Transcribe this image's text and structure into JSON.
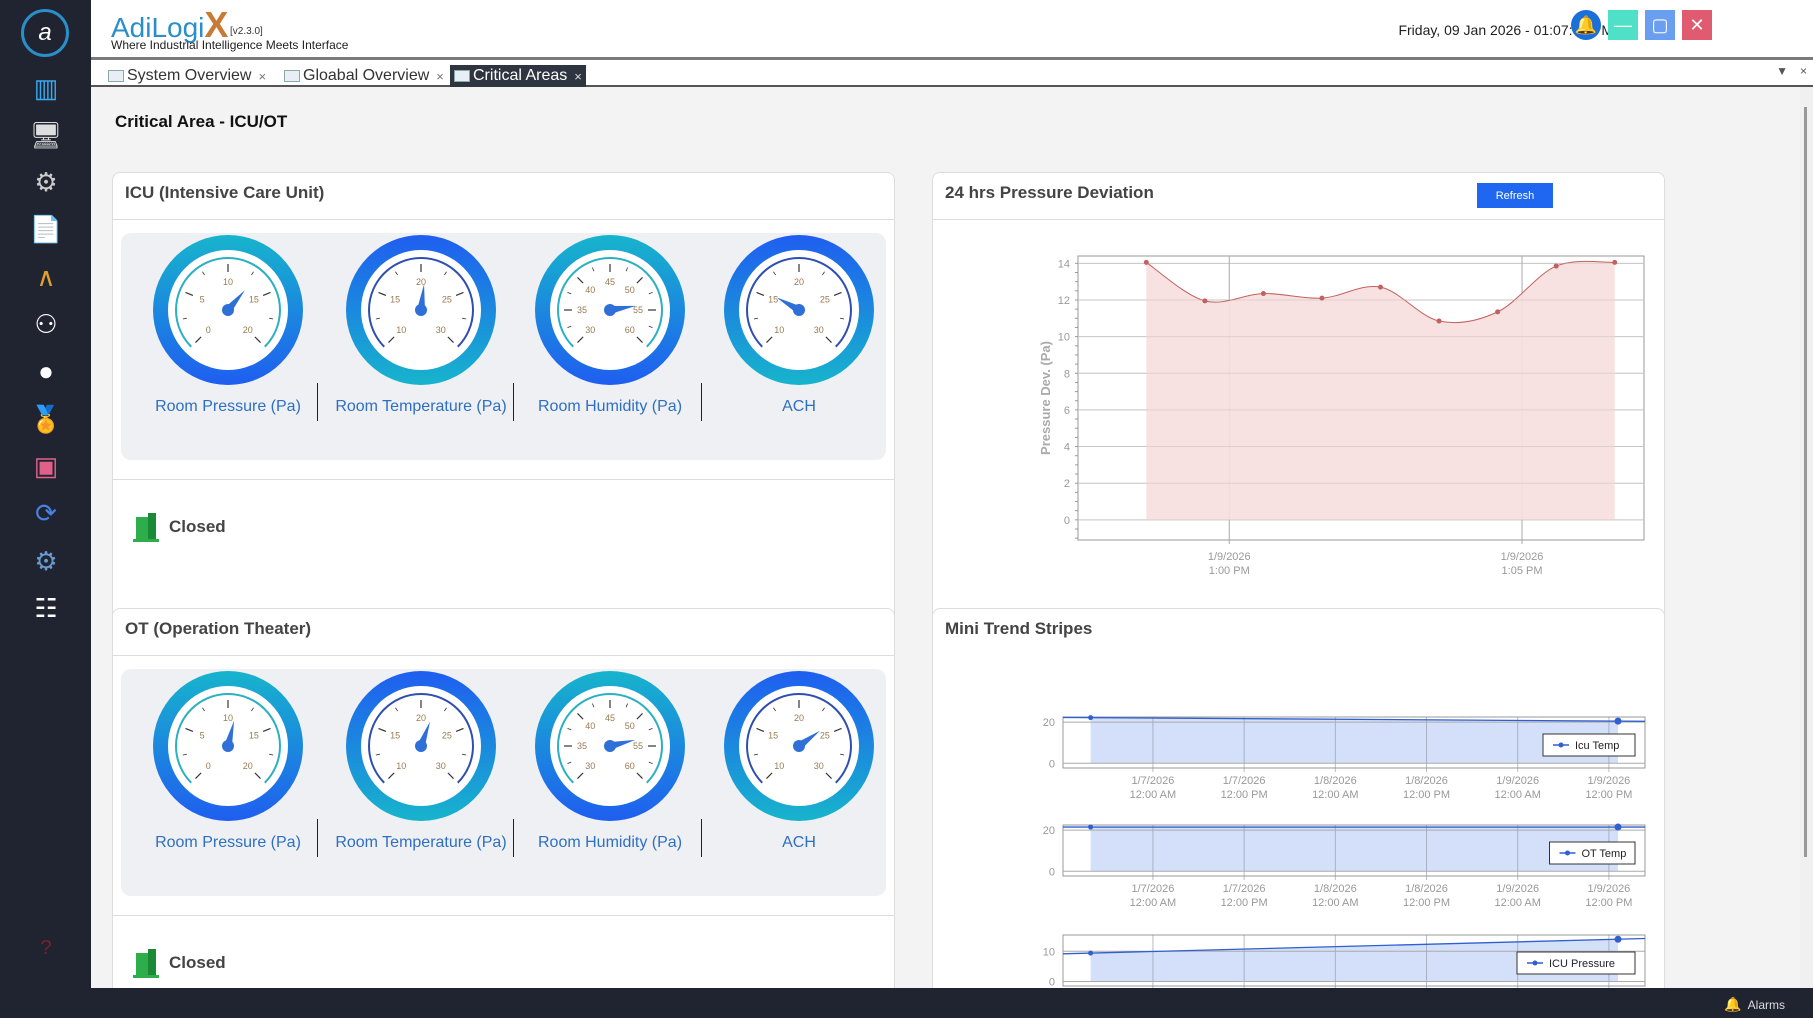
{
  "app": {
    "brand": "AdiLogi",
    "brand_x": "X",
    "version": "[v2.3.0]",
    "tagline": "Where Industrial Intelligence Meets Interface",
    "datetime": "Friday, 09 Jan 2026 - 01:07:04 PM"
  },
  "sidebar": {
    "items": [
      {
        "icon": "building-icon",
        "glyph": "▥",
        "color": "#3aa8f0"
      },
      {
        "icon": "dashboard-monitor-icon",
        "glyph": "🖥",
        "color": "#ddd"
      },
      {
        "icon": "window-settings-icon",
        "glyph": "⚙",
        "color": "#ccc"
      },
      {
        "icon": "report-icon",
        "glyph": "📄",
        "color": "#ccc"
      },
      {
        "icon": "bell-curve-chart-icon",
        "glyph": "∧",
        "color": "#e0a030"
      },
      {
        "icon": "hierarchy-icon",
        "glyph": "⚇",
        "color": "#fff"
      },
      {
        "icon": "user-profile-icon",
        "glyph": "●",
        "color": "#fff"
      },
      {
        "icon": "certificate-award-icon",
        "glyph": "🏅",
        "color": "#f0c020"
      },
      {
        "icon": "user-settings-display-icon",
        "glyph": "▣",
        "color": "#e0608a"
      },
      {
        "icon": "sync-check-icon",
        "glyph": "⟳",
        "color": "#4a80e0"
      },
      {
        "icon": "gear-icon",
        "glyph": "⚙",
        "color": "#6a9ad0"
      },
      {
        "icon": "checklist-clock-icon",
        "glyph": "☷",
        "color": "#fff"
      }
    ],
    "help_icon": "?",
    "logout_icon": "⇥"
  },
  "header_buttons": [
    {
      "name": "notification-bell-button",
      "glyph": "🔔",
      "color": "#1a6fd8"
    },
    {
      "name": "minimize-button",
      "glyph": "—",
      "color": "#4fe0c8"
    },
    {
      "name": "maximize-button",
      "glyph": "▢",
      "color": "#6a9ef0"
    },
    {
      "name": "close-button",
      "glyph": "✕",
      "color": "#e05a70"
    }
  ],
  "tabs": [
    {
      "label": "System Overview",
      "close": "×"
    },
    {
      "label": "Gloabal Overview",
      "close": "×"
    },
    {
      "label": "Critical Areas",
      "close": "×",
      "active": true
    }
  ],
  "tab_controls": {
    "dropdown": "▼",
    "close": "×"
  },
  "page_title": "Critical Area - ICU/OT",
  "areas": [
    {
      "title": "ICU (Intensive Care Unit)",
      "status": "Closed",
      "gauges": [
        {
          "label": "Room Pressure (Pa)",
          "min": 0,
          "max": 20,
          "ticks": [
            0,
            5,
            10,
            15,
            20
          ],
          "value": 13
        },
        {
          "label": "Room Temperature (Pa)",
          "min": 10,
          "max": 30,
          "ticks": [
            10,
            15,
            20,
            25,
            30
          ],
          "value": 20.5
        },
        {
          "label": "Room Humidity (Pa)",
          "min": 30,
          "max": 60,
          "ticks": [
            30,
            35,
            40,
            45,
            50,
            55,
            60
          ],
          "value": 54
        },
        {
          "label": "ACH",
          "min": 10,
          "max": 30,
          "ticks": [
            10,
            15,
            20,
            25,
            30
          ],
          "value": 15.5
        }
      ]
    },
    {
      "title": "OT (Operation Theater)",
      "status": "Closed",
      "gauges": [
        {
          "label": "Room Pressure (Pa)",
          "min": 0,
          "max": 20,
          "ticks": [
            0,
            5,
            10,
            15,
            20
          ],
          "value": 11
        },
        {
          "label": "Room Temperature (Pa)",
          "min": 10,
          "max": 30,
          "ticks": [
            10,
            15,
            20,
            25,
            30
          ],
          "value": 21.5
        },
        {
          "label": "Room Humidity (Pa)",
          "min": 30,
          "max": 60,
          "ticks": [
            30,
            35,
            40,
            45,
            50,
            55,
            60
          ],
          "value": 53.5
        },
        {
          "label": "ACH",
          "min": 10,
          "max": 30,
          "ticks": [
            10,
            15,
            20,
            25,
            30
          ],
          "value": 24
        }
      ]
    }
  ],
  "pressure_card": {
    "title": "24 hrs Pressure Deviation",
    "refresh_label": "Refresh"
  },
  "trend_card": {
    "title": "Mini Trend Stripes"
  },
  "status_bar": {
    "alarms_label": "Alarms"
  },
  "colors": {
    "accent": "#1f66f0",
    "sidebar": "#1f2430",
    "pressure_fill": "#f7dede",
    "pressure_line": "#c46060",
    "trend_fill": "#d4e0fa",
    "trend_line": "#2f5fd0"
  },
  "chart_data": [
    {
      "type": "area",
      "title": "24 hrs Pressure Deviation",
      "ylabel": "Pressure Dev. (Pa)",
      "xlabel": "",
      "ylim": [
        -1.1,
        14.4
      ],
      "yticks": [
        0,
        2,
        4,
        6,
        8,
        10,
        12,
        14
      ],
      "xlim": [
        "2026-01-09T12:57:25",
        "2026-01-09T13:07:05"
      ],
      "xticks": [
        {
          "t": "2026-01-09T13:00:00",
          "label": [
            "1/9/2026",
            "1:00 PM"
          ]
        },
        {
          "t": "2026-01-09T13:05:00",
          "label": [
            "1/9/2026",
            "1:05 PM"
          ]
        }
      ],
      "grid": true,
      "x": [
        "2026-01-09T12:58:35",
        "2026-01-09T12:59:35",
        "2026-01-09T13:00:35",
        "2026-01-09T13:01:35",
        "2026-01-09T13:02:35",
        "2026-01-09T13:03:35",
        "2026-01-09T13:04:35",
        "2026-01-09T13:05:35",
        "2026-01-09T13:06:35"
      ],
      "values": [
        14.05,
        11.95,
        12.35,
        12.1,
        12.7,
        10.85,
        11.35,
        13.85,
        14.05
      ]
    },
    {
      "type": "area",
      "legend": "Icu Temp",
      "legend_position": "bottom-right",
      "ylim": [
        -2.3,
        22.5
      ],
      "yticks": [
        0,
        20
      ],
      "xlim": [
        "2026-01-06T12:10",
        "2026-01-09T16:45"
      ],
      "x": [
        "2026-01-06T15:48",
        "2026-01-09T13:12"
      ],
      "values": [
        22.2,
        20.5
      ]
    },
    {
      "type": "area",
      "legend": "OT Temp",
      "legend_position": "bottom-right",
      "ylim": [
        -2.3,
        22.5
      ],
      "yticks": [
        0,
        20
      ],
      "xlim": [
        "2026-01-06T12:10",
        "2026-01-09T16:45"
      ],
      "x": [
        "2026-01-06T15:48",
        "2026-01-09T13:12"
      ],
      "values": [
        21.5,
        21.5
      ]
    },
    {
      "type": "area",
      "legend": "ICU Pressure",
      "legend_position": "bottom-right",
      "ylim": [
        -1.5,
        15.4
      ],
      "yticks": [
        0,
        10
      ],
      "xlim": [
        "2026-01-06T12:10",
        "2026-01-09T16:45"
      ],
      "x": [
        "2026-01-06T15:48",
        "2026-01-09T13:12"
      ],
      "values": [
        9.4,
        14
      ]
    }
  ],
  "trend_xticks": [
    {
      "t": "2026-01-07T00:00",
      "label": [
        "1/7/2026",
        "12:00 AM"
      ]
    },
    {
      "t": "2026-01-07T12:00",
      "label": [
        "1/7/2026",
        "12:00 PM"
      ]
    },
    {
      "t": "2026-01-08T00:00",
      "label": [
        "1/8/2026",
        "12:00 AM"
      ]
    },
    {
      "t": "2026-01-08T12:00",
      "label": [
        "1/8/2026",
        "12:00 PM"
      ]
    },
    {
      "t": "2026-01-09T00:00",
      "label": [
        "1/9/2026",
        "12:00 AM"
      ]
    },
    {
      "t": "2026-01-09T12:00",
      "label": [
        "1/9/2026",
        "12:00 PM"
      ]
    }
  ]
}
